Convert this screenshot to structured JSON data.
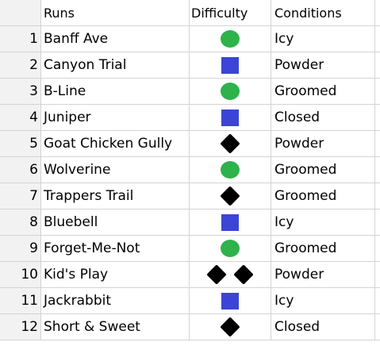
{
  "header": {
    "num": "",
    "runs": "Runs",
    "difficulty": "Difficulty",
    "conditions": "Conditions"
  },
  "rows": [
    {
      "num": "1",
      "run": "Banff Ave",
      "difficulty": "circle",
      "condition": "Icy"
    },
    {
      "num": "2",
      "run": "Canyon Trial",
      "difficulty": "square",
      "condition": "Powder"
    },
    {
      "num": "3",
      "run": "B-Line",
      "difficulty": "circle",
      "condition": "Groomed"
    },
    {
      "num": "4",
      "run": "Juniper",
      "difficulty": "square",
      "condition": "Closed"
    },
    {
      "num": "5",
      "run": "Goat Chicken Gully",
      "difficulty": "diamond",
      "condition": "Powder"
    },
    {
      "num": "6",
      "run": "Wolverine",
      "difficulty": "circle",
      "condition": "Groomed"
    },
    {
      "num": "7",
      "run": "Trappers Trail",
      "difficulty": "diamond",
      "condition": "Groomed"
    },
    {
      "num": "8",
      "run": "Bluebell",
      "difficulty": "square",
      "condition": "Icy"
    },
    {
      "num": "9",
      "run": "Forget-Me-Not",
      "difficulty": "circle",
      "condition": "Groomed"
    },
    {
      "num": "10",
      "run": "Kid's Play",
      "difficulty": "double-diamond",
      "condition": "Powder"
    },
    {
      "num": "11",
      "run": "Jackrabbit",
      "difficulty": "square",
      "condition": "Icy"
    },
    {
      "num": "12",
      "run": "Short & Sweet",
      "difficulty": "diamond",
      "condition": "Closed"
    }
  ],
  "colors": {
    "easy_green": "#2eb24b",
    "intermediate_blue": "#3b44d6",
    "expert_black": "#000000",
    "gridline": "#d4d4d4",
    "row_header_bg": "#f2f2f2"
  }
}
